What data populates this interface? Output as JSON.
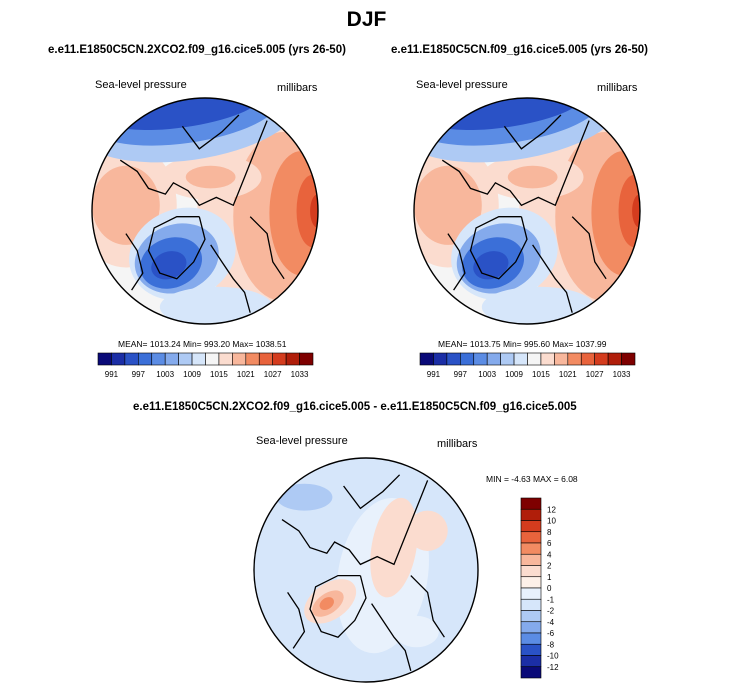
{
  "title": "DJF",
  "panels": [
    {
      "case_title": "e.e11.E1850C5CN.2XCO2.f09_g16.cice5.005 (yrs 26-50)",
      "field_label": "Sea-level pressure",
      "units_label": "millibars",
      "stats_text": "MEAN= 1013.24   Min= 993.20   Max= 1038.51"
    },
    {
      "case_title": "e.e11.E1850C5CN.f09_g16.cice5.005 (yrs 26-50)",
      "field_label": "Sea-level pressure",
      "units_label": "millibars",
      "stats_text": "MEAN= 1013.75   Min= 995.60   Max= 1037.99"
    },
    {
      "case_title": "e.e11.E1850C5CN.2XCO2.f09_g16.cice5.005 - e.e11.E1850C5CN.f09_g16.cice5.005",
      "field_label": "Sea-level pressure",
      "units_label": "millibars",
      "stats_text": "MIN =  -4.63 MAX =   6.08"
    }
  ],
  "chart_data": [
    {
      "type": "heatmap",
      "title": "e.e11.E1850C5CN.2XCO2.f09_g16.cice5.005 (yrs 26-50)",
      "variable": "Sea-level pressure",
      "units": "millibars",
      "projection": "north polar stereographic",
      "mean": 1013.24,
      "min": 993.2,
      "max": 1038.51,
      "colorbar_levels": [
        991,
        994,
        997,
        1000,
        1003,
        1006,
        1009,
        1012,
        1015,
        1018,
        1021,
        1024,
        1027,
        1030,
        1033
      ],
      "colorbar_tick_labels": [
        "991",
        "997",
        "1003",
        "1009",
        "1015",
        "1021",
        "1027",
        "1033"
      ],
      "colors": [
        "#0a0a78",
        "#1b2ea6",
        "#2a52c6",
        "#3b6fd8",
        "#5b8ce4",
        "#84aaec",
        "#aecaf4",
        "#d6e6fa",
        "#f5f5f5",
        "#fbdccf",
        "#f8b79c",
        "#f28b62",
        "#e8633c",
        "#d43c1e",
        "#b01e0a",
        "#7e0000"
      ]
    },
    {
      "type": "heatmap",
      "title": "e.e11.E1850C5CN.f09_g16.cice5.005 (yrs 26-50)",
      "variable": "Sea-level pressure",
      "units": "millibars",
      "projection": "north polar stereographic",
      "mean": 1013.75,
      "min": 995.6,
      "max": 1037.99,
      "colorbar_levels": [
        991,
        994,
        997,
        1000,
        1003,
        1006,
        1009,
        1012,
        1015,
        1018,
        1021,
        1024,
        1027,
        1030,
        1033
      ],
      "colorbar_tick_labels": [
        "991",
        "997",
        "1003",
        "1009",
        "1015",
        "1021",
        "1027",
        "1033"
      ],
      "colors": [
        "#0a0a78",
        "#1b2ea6",
        "#2a52c6",
        "#3b6fd8",
        "#5b8ce4",
        "#84aaec",
        "#aecaf4",
        "#d6e6fa",
        "#f5f5f5",
        "#fbdccf",
        "#f8b79c",
        "#f28b62",
        "#e8633c",
        "#d43c1e",
        "#b01e0a",
        "#7e0000"
      ]
    },
    {
      "type": "heatmap",
      "title": "e.e11.E1850C5CN.2XCO2.f09_g16.cice5.005 - e.e11.E1850C5CN.f09_g16.cice5.005",
      "variable": "Sea-level pressure",
      "units": "millibars",
      "projection": "north polar stereographic",
      "min": -4.63,
      "max": 6.08,
      "colorbar_levels": [
        -12,
        -10,
        -8,
        -6,
        -4,
        -2,
        -1,
        0,
        1,
        2,
        4,
        6,
        8,
        10,
        12
      ],
      "colorbar_tick_labels": [
        "12",
        "10",
        "8",
        "6",
        "4",
        "2",
        "1",
        "0",
        "-1",
        "-2",
        "-4",
        "-6",
        "-8",
        "-10",
        "-12"
      ],
      "colors": [
        "#7e0000",
        "#b01e0a",
        "#d43c1e",
        "#e8633c",
        "#f28b62",
        "#f8b79c",
        "#fbdccf",
        "#fdf0e8",
        "#e8f1fc",
        "#d6e6fa",
        "#aecaf4",
        "#84aaec",
        "#5b8ce4",
        "#2a52c6",
        "#1b2ea6",
        "#0a0a78"
      ]
    }
  ]
}
